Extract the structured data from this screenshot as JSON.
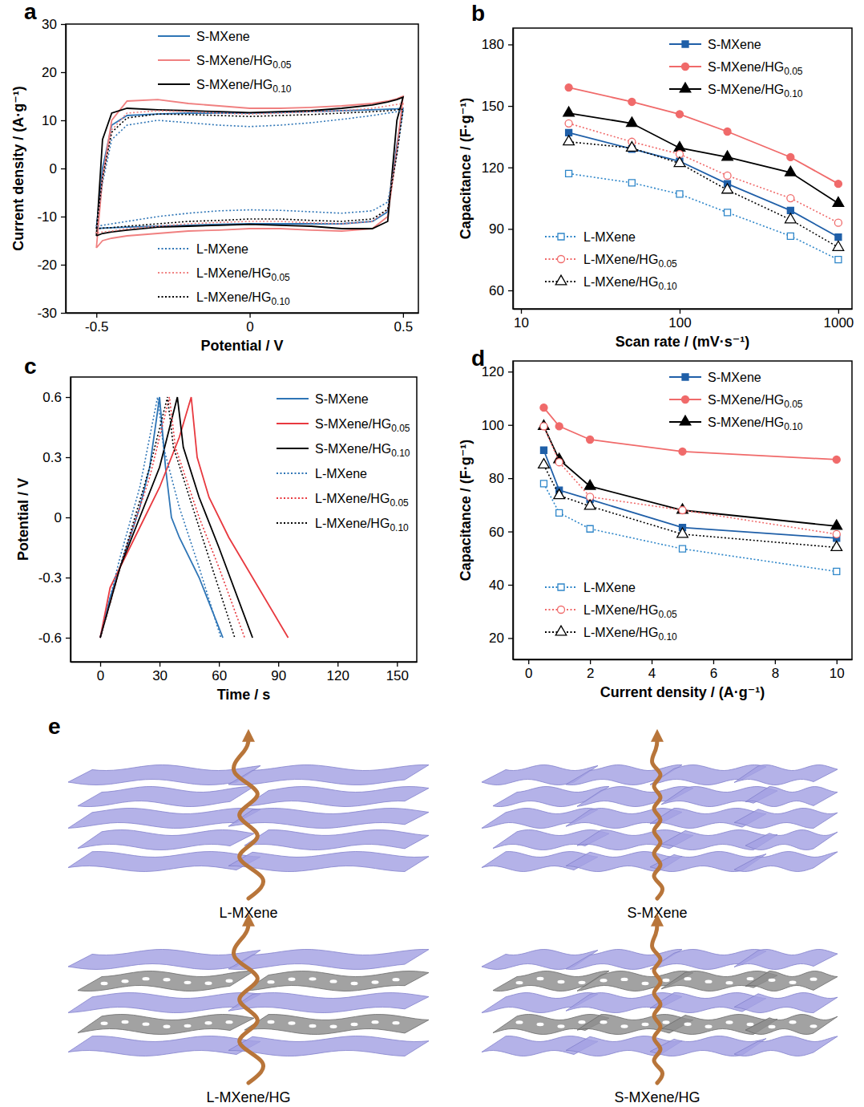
{
  "chart_data": [
    {
      "panel": "a",
      "type": "line",
      "xlabel": "Potential / V",
      "ylabel": "Current density / (A·g⁻¹)",
      "x": [
        -0.5,
        -0.48,
        -0.45,
        -0.4,
        -0.3,
        -0.2,
        -0.1,
        0,
        0.1,
        0.2,
        0.3,
        0.4,
        0.45,
        0.48,
        0.5,
        0.48,
        0.45,
        0.4,
        0.3,
        0.2,
        0.1,
        0,
        -0.1,
        -0.2,
        -0.3,
        -0.4,
        -0.45,
        -0.48,
        -0.5
      ],
      "xlim": [
        -0.6,
        0.55
      ],
      "xticks": [
        -0.5,
        0,
        0.5
      ],
      "ylim": [
        -30,
        30
      ],
      "yticks": [
        -30,
        -20,
        -10,
        0,
        10,
        20,
        30
      ],
      "legend": "left",
      "series": [
        {
          "name": "S-MXene",
          "color": "#2e75b6",
          "line_style": "solid",
          "values": [
            -12.5,
            0,
            9,
            11,
            11.3,
            11.5,
            11.5,
            11.5,
            11.6,
            11.8,
            12,
            12.2,
            12.3,
            12.4,
            12.5,
            5,
            -9,
            -11,
            -11.5,
            -11.5,
            -11.5,
            -11.5,
            -11.6,
            -11.8,
            -12,
            -12.2,
            -12.3,
            -12.4,
            -12.5
          ]
        },
        {
          "name": "S-MXene/HG0.05",
          "color": "#f08080",
          "line_style": "solid",
          "values": [
            -16.5,
            -2,
            10,
            14,
            14.3,
            13.5,
            13,
            12.5,
            12.5,
            12.7,
            13,
            13.5,
            14,
            14.5,
            15,
            4,
            -10,
            -12.5,
            -13,
            -12.8,
            -12.5,
            -12.5,
            -12.8,
            -13,
            -13.5,
            -14,
            -14.5,
            -15,
            -16.5
          ]
        },
        {
          "name": "S-MXene/HG0.10",
          "color": "#000000",
          "line_style": "solid",
          "values": [
            -14,
            6,
            11.5,
            12.5,
            12.2,
            12,
            11.8,
            11.6,
            11.8,
            12,
            12.5,
            13.2,
            13.8,
            14.3,
            14.8,
            10,
            -11,
            -12.5,
            -12.5,
            -12,
            -11.8,
            -11.6,
            -11.8,
            -12,
            -12.2,
            -12.8,
            -13.2,
            -13.5,
            -14
          ]
        },
        {
          "name": "L-MXene",
          "color": "#2e75b6",
          "line_style": "dotted",
          "values": [
            -12,
            -3,
            6,
            9,
            10,
            9.5,
            9,
            8.7,
            9,
            9.5,
            10.2,
            11,
            11.5,
            11.8,
            12,
            3,
            -7,
            -8.8,
            -9.3,
            -9,
            -8.7,
            -8.6,
            -8.8,
            -9.3,
            -10,
            -11,
            -11.5,
            -11.8,
            -12
          ]
        },
        {
          "name": "L-MXene/HG0.05",
          "color": "#f08080",
          "line_style": "dotted",
          "values": [
            -13.5,
            -2,
            8,
            11.5,
            12,
            11.8,
            11.5,
            11.3,
            11.5,
            11.8,
            12,
            12.5,
            13,
            13.3,
            13.5,
            4,
            -8.5,
            -11,
            -11.5,
            -11.3,
            -11,
            -11,
            -11.2,
            -11.5,
            -12,
            -12.5,
            -13,
            -13.2,
            -13.5
          ]
        },
        {
          "name": "L-MXene/HG0.10",
          "color": "#000000",
          "line_style": "dotted",
          "values": [
            -12.5,
            -2,
            7.5,
            10.5,
            11.3,
            11.2,
            11,
            10.8,
            11,
            11.2,
            11.5,
            11.8,
            12,
            12.2,
            12.3,
            3,
            -8.5,
            -10.5,
            -11,
            -10.8,
            -10.5,
            -10.5,
            -10.8,
            -11,
            -11.5,
            -12,
            -12.3,
            -12.4,
            -12.5
          ]
        }
      ]
    },
    {
      "panel": "b",
      "type": "line",
      "xlabel": "Scan rate / (mV·s⁻¹)",
      "ylabel": "Capacitance / (F·g⁻¹)",
      "log": "x",
      "x": [
        20,
        50,
        100,
        200,
        500,
        1000
      ],
      "xlim": [
        8.9,
        1220
      ],
      "xticks": [
        10,
        100,
        1000
      ],
      "ylim": [
        51,
        188
      ],
      "yticks": [
        60,
        90,
        120,
        150,
        180
      ],
      "legend": "split",
      "series": [
        {
          "name": "S-MXene",
          "color": "#1f5fa8",
          "line_style": "solid",
          "marker": "square",
          "values": [
            137,
            129,
            123,
            112,
            99,
            86
          ]
        },
        {
          "name": "S-MXene/HG0.05",
          "color": "#f06a6a",
          "line_style": "solid",
          "marker": "circle",
          "values": [
            159,
            152,
            146,
            137.5,
            125,
            112
          ]
        },
        {
          "name": "S-MXene/HG0.10",
          "color": "#000000",
          "line_style": "solid",
          "marker": "triangle",
          "values": [
            146.5,
            141.5,
            129.5,
            125,
            117.5,
            102.5
          ]
        },
        {
          "name": "L-MXene",
          "color": "#2e86c9",
          "line_style": "dotted",
          "marker": "open-square",
          "values": [
            117,
            112.5,
            107,
            98,
            86.5,
            75
          ]
        },
        {
          "name": "L-MXene/HG0.05",
          "color": "#f06a6a",
          "line_style": "dotted",
          "marker": "open-circle",
          "values": [
            141.5,
            132.5,
            126.5,
            116,
            105,
            93
          ]
        },
        {
          "name": "L-MXene/HG0.10",
          "color": "#000000",
          "line_style": "dotted",
          "marker": "open-triangle",
          "values": [
            132.5,
            129.5,
            122,
            109,
            94.5,
            81
          ]
        }
      ]
    },
    {
      "panel": "c",
      "type": "line",
      "xlabel": "Time / s",
      "ylabel": "Potential / V",
      "xlim": [
        -15,
        160
      ],
      "xticks": [
        0,
        30,
        60,
        90,
        120,
        150
      ],
      "ylim": [
        -0.72,
        0.7
      ],
      "yticks": [
        -0.6,
        -0.3,
        0,
        0.3,
        0.6
      ],
      "legend": "right",
      "series": [
        {
          "name": "S-MXene",
          "color": "#2e75b6",
          "line_style": "solid",
          "x": [
            0,
            5,
            10,
            20,
            25,
            30,
            33,
            36,
            40,
            50,
            62
          ],
          "values": [
            -0.6,
            -0.4,
            -0.25,
            0.05,
            0.25,
            0.6,
            0.25,
            0,
            -0.1,
            -0.3,
            -0.6
          ]
        },
        {
          "name": "S-MXene/HG0.05",
          "color": "#e8393f",
          "line_style": "solid",
          "x": [
            0,
            5,
            10,
            20,
            30,
            40,
            46,
            49,
            55,
            65,
            80,
            95
          ],
          "values": [
            -0.6,
            -0.35,
            -0.25,
            -0.05,
            0.15,
            0.4,
            0.6,
            0.3,
            0.1,
            -0.1,
            -0.35,
            -0.6
          ]
        },
        {
          "name": "S-MXene/HG0.10",
          "color": "#000000",
          "line_style": "solid",
          "x": [
            0,
            10,
            20,
            30,
            39,
            42,
            50,
            60,
            77
          ],
          "values": [
            -0.6,
            -0.25,
            0,
            0.25,
            0.6,
            0.35,
            0.1,
            -0.15,
            -0.6
          ]
        },
        {
          "name": "L-MXene",
          "color": "#2e75b6",
          "line_style": "dotted",
          "x": [
            0,
            10,
            20,
            29,
            32,
            40,
            50,
            61
          ],
          "values": [
            -0.6,
            -0.2,
            0.15,
            0.6,
            0.35,
            0.05,
            -0.25,
            -0.6
          ]
        },
        {
          "name": "L-MXene/HG0.05",
          "color": "#e8393f",
          "line_style": "dotted",
          "x": [
            0,
            10,
            25,
            35,
            38,
            50,
            60,
            73
          ],
          "values": [
            -0.6,
            -0.25,
            0.2,
            0.6,
            0.35,
            0,
            -0.25,
            -0.6
          ]
        },
        {
          "name": "L-MXene/HG0.10",
          "color": "#000000",
          "line_style": "dotted",
          "x": [
            0,
            10,
            25,
            34,
            37,
            50,
            68
          ],
          "values": [
            -0.6,
            -0.25,
            0.25,
            0.6,
            0.35,
            -0.05,
            -0.6
          ]
        }
      ]
    },
    {
      "panel": "d",
      "type": "line",
      "xlabel": "Current density / (A·g⁻¹)",
      "ylabel": "Capacitance / (F·g⁻¹)",
      "x": [
        0.5,
        1,
        2,
        5,
        10
      ],
      "xlim": [
        -0.5,
        10.5
      ],
      "xticks": [
        0,
        2,
        4,
        6,
        8,
        10
      ],
      "ylim": [
        12,
        124
      ],
      "yticks": [
        20,
        40,
        60,
        80,
        100,
        120
      ],
      "legend": "split",
      "series": [
        {
          "name": "S-MXene",
          "color": "#1f5fa8",
          "line_style": "solid",
          "marker": "square",
          "values": [
            90.5,
            75.5,
            72,
            61.5,
            57.5
          ]
        },
        {
          "name": "S-MXene/HG0.05",
          "color": "#f06a6a",
          "line_style": "solid",
          "marker": "circle",
          "values": [
            106.5,
            99.5,
            94.5,
            90,
            87
          ]
        },
        {
          "name": "S-MXene/HG0.10",
          "color": "#000000",
          "line_style": "solid",
          "marker": "triangle",
          "values": [
            99.5,
            87,
            77,
            68,
            62
          ]
        },
        {
          "name": "L-MXene",
          "color": "#2e86c9",
          "line_style": "dotted",
          "marker": "open-square",
          "values": [
            78,
            67,
            61,
            53.5,
            45
          ]
        },
        {
          "name": "L-MXene/HG0.05",
          "color": "#f06a6a",
          "line_style": "dotted",
          "marker": "open-circle",
          "values": [
            99.5,
            86,
            73,
            68,
            59
          ]
        },
        {
          "name": "L-MXene/HG0.10",
          "color": "#000000",
          "line_style": "dotted",
          "marker": "open-triangle",
          "values": [
            85,
            73.5,
            69.5,
            59,
            54
          ]
        }
      ]
    }
  ],
  "diagram": {
    "panel": "e",
    "items": [
      {
        "label": "L-MXene"
      },
      {
        "label": "S-MXene"
      },
      {
        "label": "L-MXene/HG"
      },
      {
        "label": "S-MXene/HG"
      }
    ]
  }
}
